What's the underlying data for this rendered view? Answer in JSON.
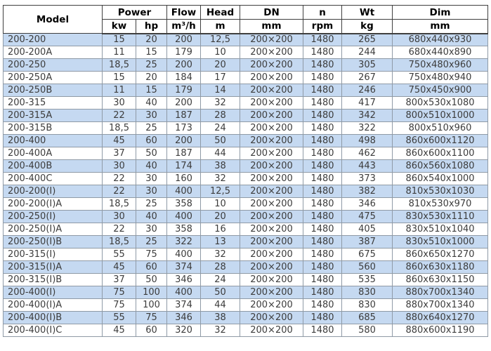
{
  "colors": {
    "row_alt_bg": "#c5d9f1",
    "body_border": "#8f9aa6",
    "header_border": "#3f3f3f",
    "text": "#3c3c3c"
  },
  "table": {
    "header": {
      "model": "Model",
      "power": "Power",
      "power_kw": "kw",
      "power_hp": "hp",
      "flow": "Flow",
      "flow_unit": "m³/h",
      "head": "Head",
      "head_unit": "m",
      "dn": "DN",
      "dn_unit": "mm",
      "n": "n",
      "n_unit": "rpm",
      "wt": "Wt",
      "wt_unit": "kg",
      "dim": "Dim",
      "dim_unit": "mm"
    },
    "columns": [
      "model",
      "power-kw",
      "power-hp",
      "flow",
      "head",
      "dn",
      "rpm",
      "wt",
      "dim"
    ],
    "rows": [
      [
        "200-200",
        "15",
        "20",
        "200",
        "12,5",
        "200×200",
        "1480",
        "265",
        "680x440x930"
      ],
      [
        "200-200A",
        "11",
        "15",
        "179",
        "10",
        "200×200",
        "1480",
        "244",
        "680x440x890"
      ],
      [
        "200-250",
        "18,5",
        "25",
        "200",
        "20",
        "200×200",
        "1480",
        "305",
        "750x480x960"
      ],
      [
        "200-250A",
        "15",
        "20",
        "184",
        "17",
        "200×200",
        "1480",
        "267",
        "750x480x940"
      ],
      [
        "200-250B",
        "11",
        "15",
        "179",
        "14",
        "200×200",
        "1480",
        "246",
        "750x450x900"
      ],
      [
        "200-315",
        "30",
        "40",
        "200",
        "32",
        "200×200",
        "1480",
        "417",
        "800x530x1080"
      ],
      [
        "200-315A",
        "22",
        "30",
        "187",
        "28",
        "200×200",
        "1480",
        "342",
        "800x510x1000"
      ],
      [
        "200-315B",
        "18,5",
        "25",
        "173",
        "24",
        "200×200",
        "1480",
        "322",
        "800x510x960"
      ],
      [
        "200-400",
        "45",
        "60",
        "200",
        "50",
        "200×200",
        "1480",
        "498",
        "860x600x1120"
      ],
      [
        "200-400A",
        "37",
        "50",
        "187",
        "44",
        "200×200",
        "1480",
        "462",
        "860x600x1100"
      ],
      [
        "200-400B",
        "30",
        "40",
        "174",
        "38",
        "200×200",
        "1480",
        "443",
        "860x560x1080"
      ],
      [
        "200-400C",
        "22",
        "30",
        "160",
        "32",
        "200×200",
        "1480",
        "373",
        "860x540x1000"
      ],
      [
        "200-200(I)",
        "22",
        "30",
        "400",
        "12,5",
        "200×200",
        "1480",
        "382",
        "810x530x1030"
      ],
      [
        "200-200(I)A",
        "18,5",
        "25",
        "358",
        "10",
        "200×200",
        "1480",
        "346",
        "810x530x970"
      ],
      [
        "200-250(I)",
        "30",
        "40",
        "400",
        "20",
        "200×200",
        "1480",
        "475",
        "830x530x1110"
      ],
      [
        "200-250(I)A",
        "22",
        "30",
        "358",
        "16",
        "200×200",
        "1480",
        "405",
        "830x510x1040"
      ],
      [
        "200-250(I)B",
        "18,5",
        "25",
        "322",
        "13",
        "200×200",
        "1480",
        "387",
        "830x510x1000"
      ],
      [
        "200-315(I)",
        "55",
        "75",
        "400",
        "32",
        "200×200",
        "1480",
        "675",
        "860x650x1270"
      ],
      [
        "200-315(I)A",
        "45",
        "60",
        "374",
        "28",
        "200×200",
        "1480",
        "560",
        "860x630x1180"
      ],
      [
        "200-315(I)B",
        "37",
        "50",
        "346",
        "24",
        "200×200",
        "1480",
        "535",
        "860x630x1150"
      ],
      [
        "200-400(I)",
        "75",
        "100",
        "400",
        "50",
        "200×200",
        "1480",
        "830",
        "880x700x1340"
      ],
      [
        "200-400(I)A",
        "75",
        "100",
        "374",
        "44",
        "200×200",
        "1480",
        "830",
        "880x700x1340"
      ],
      [
        "200-400(I)B",
        "55",
        "75",
        "346",
        "38",
        "200×200",
        "1480",
        "685",
        "880x640x1270"
      ],
      [
        "200-400(I)C",
        "45",
        "60",
        "320",
        "32",
        "200×200",
        "1480",
        "580",
        "880x600x1190"
      ]
    ]
  }
}
